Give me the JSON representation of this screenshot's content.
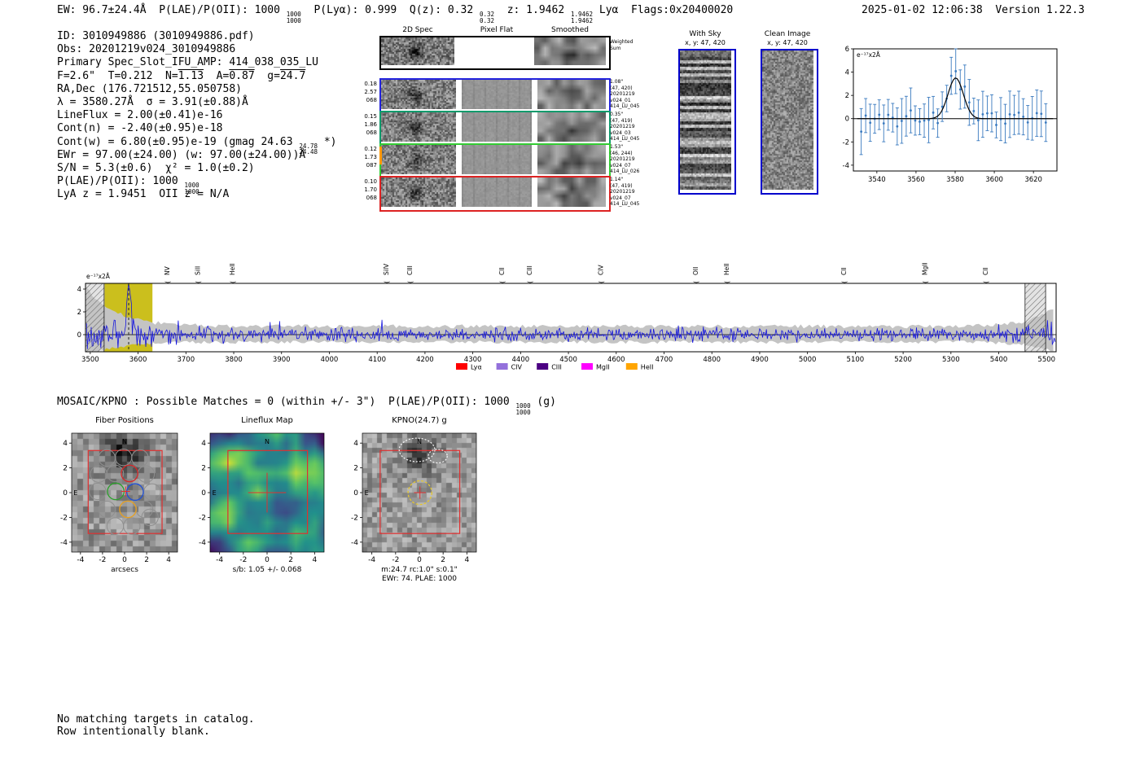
{
  "header": {
    "left": [
      {
        "t": "EW: 96.7±24.4Å  P(LAE)/P(OII): 1000 "
      },
      {
        "num": "1000",
        "den": "1000"
      },
      {
        "t": "  P(Lyα): 0.999  Q(z): 0.32 "
      },
      {
        "num": "0.32",
        "den": "0.32"
      },
      {
        "t": "  z: 1.9462 "
      },
      {
        "num": "1.9462",
        "den": "1.9462"
      },
      {
        "t": " Lyα  Flags:0x20400020"
      }
    ],
    "right": "2025-01-02 12:06:38  Version 1.22.3"
  },
  "info_lines": [
    [
      {
        "t": "ID: 3010949886 (3010949886.pdf)"
      }
    ],
    [
      {
        "t": "Obs: 20201219v024_3010949886"
      }
    ],
    [
      {
        "t": "Primary Spec_Slot_IFU_AMP: 414_038_035_LU"
      }
    ],
    [
      {
        "t": "F=2.6\"  T=0.212  N="
      },
      {
        "t": "1.13",
        "ov": true
      },
      {
        "t": "  A="
      },
      {
        "t": "0.87",
        "ov": true
      },
      {
        "t": "  g="
      },
      {
        "t": "24.7",
        "ov": true
      }
    ],
    [
      {
        "t": "RA,Dec (176.721512,55.050758)"
      }
    ],
    [
      {
        "t": "λ = 3580.27Å  σ = 3.91(±0.88)Å"
      }
    ],
    [
      {
        "t": "LineFlux = 2.00(±0.41)e-16"
      }
    ],
    [
      {
        "t": "Cont(n) = -2.40(±0.95)e-18"
      }
    ],
    [
      {
        "t": "Cont(w) = 6.80(±0.95)e-19 (gmag 24.63 "
      },
      {
        "num": "24.78",
        "den": "24.48"
      },
      {
        "t": " *)"
      }
    ],
    [
      {
        "t": "EWr = 97.00(±24.00) (w: 97.00(±24.00))Å"
      }
    ],
    [
      {
        "t": "S/N = 5.3(±0.6)  χ² = 1.0(±0.2)"
      }
    ],
    [
      {
        "t": "P(LAE)/P(OII): 1000 "
      },
      {
        "num": "1000",
        "den": "1000"
      }
    ],
    [
      {
        "t": "LyA z = 1.9451  OII z = N/A"
      }
    ]
  ],
  "spec2d": {
    "col_headers": [
      "2D Spec",
      "Pixel Flat",
      "Smoothed"
    ],
    "weighted_sum_label": "Weighted\nSum",
    "rows": [
      {
        "left": "0.18\n2.57\n068",
        "right": "1.08\"\n(47, 420)\n20201219\nv024_01\n414_LU_045",
        "border": "#2222dd"
      },
      {
        "left": "0.15\n1.86\n068",
        "right": "0.35\"\n(47, 419)\n20201219\nv024_03\n414_LU_045",
        "border": "#0f9b6c"
      },
      {
        "left": "0.12\n1.73\n087",
        "right": "1.53\"\n(46, 244)\n20201219\nv024_07\n414_LU_026",
        "border": "#33cc33",
        "accent": "#ff9900"
      },
      {
        "left": "0.10\n1.70\n068",
        "right": "1.14\"\n(47, 419)\n20201219\nv024_07\n414_LU_045",
        "border": "#dd2222"
      }
    ]
  },
  "with_sky": {
    "title": "With Sky",
    "coords": "x, y: 47, 420"
  },
  "clean_image": {
    "title": "Clean Image",
    "coords": "x, y: 47, 420"
  },
  "mosaic_line": [
    {
      "t": "MOSAIC/KPNO : Possible Matches = 0 (within +/- 3\")  P(LAE)/P(OII): 1000 "
    },
    {
      "num": "1000",
      "den": "1000"
    },
    {
      "t": " (g)"
    }
  ],
  "footer_lines": [
    "No matching targets in catalog.",
    "Row intentionally blank."
  ],
  "chart_data": [
    {
      "id": "zoom_spectrum",
      "type": "line",
      "ylabel_annotation": "e⁻¹⁷x2Å",
      "xlim": [
        3528,
        3632
      ],
      "ylim": [
        -4.5,
        6
      ],
      "xticks": [
        3540,
        3560,
        3580,
        3600,
        3620
      ],
      "yticks": [
        6,
        4,
        2,
        0,
        -2,
        -4
      ],
      "gauss_fit": {
        "center": 3580.27,
        "sigma": 3.91,
        "amplitude": 3.5
      },
      "noise_sigma": 1.2,
      "point_color": "#3a7abf",
      "fit_color": "#000000"
    },
    {
      "id": "full_spectrum",
      "type": "line",
      "ylabel_annotation": "e⁻¹⁷x2Å",
      "xlim": [
        3490,
        5520
      ],
      "ylim": [
        -1.5,
        4.5
      ],
      "xticks": [
        3500,
        3600,
        3700,
        3800,
        3900,
        4000,
        4100,
        4200,
        4300,
        4400,
        4500,
        4600,
        4700,
        4800,
        4900,
        5000,
        5100,
        5200,
        5300,
        5400,
        5500
      ],
      "yticks": [
        4,
        2,
        0
      ],
      "peak": {
        "wavelength": 3580.27,
        "height": 4.3
      },
      "continuum_level": 0.0,
      "noise_sigma": 0.7,
      "highlight_band": {
        "x0": 3530,
        "x1": 3630,
        "color": "#cbbf1d"
      },
      "edge_masks": [
        [
          3490,
          3529
        ],
        [
          5455,
          5498
        ]
      ],
      "marked_wavelength": 3580.27,
      "line_color": "#1515dd",
      "noise_band_color": "#c4c4c4",
      "line_markers": [
        {
          "label": "NV",
          "wavelength": 3661,
          "color": "#c03070"
        },
        {
          "label": "SiII",
          "wavelength": 3725,
          "color": "#b22222"
        },
        {
          "label": "HeII",
          "wavelength": 3797,
          "color": "#9370db"
        },
        {
          "label": "SiIV",
          "wavelength": 4119,
          "color": "#9370db"
        },
        {
          "label": "CIII",
          "wavelength": 4169,
          "color": "#ffa500"
        },
        {
          "label": "CII",
          "wavelength": 4361,
          "color": "#9370db"
        },
        {
          "label": "CIII",
          "wavelength": 4419,
          "color": "#9370db"
        },
        {
          "label": "CIV",
          "wavelength": 4568,
          "color": "#e01010"
        },
        {
          "label": "OII",
          "wavelength": 4766,
          "color": "#ff00ff"
        },
        {
          "label": "HeII",
          "wavelength": 4831,
          "color": "#e01010"
        },
        {
          "label": "CII",
          "wavelength": 5076,
          "color": "#ffa500"
        },
        {
          "label": "MgII",
          "wavelength": 5246,
          "color": "#9370db"
        },
        {
          "label": "CII",
          "wavelength": 5373,
          "color": "#9370db"
        }
      ],
      "legend": [
        {
          "label": "Lyα",
          "color": "#ff0000"
        },
        {
          "label": "CIV",
          "color": "#9370db"
        },
        {
          "label": "CIII",
          "color": "#4b0082"
        },
        {
          "label": "MgII",
          "color": "#ff00ff"
        },
        {
          "label": "HeII",
          "color": "#ffa500"
        }
      ]
    },
    {
      "id": "fiber_positions",
      "type": "heatmap",
      "title": "Fiber Positions",
      "xlabel": "arcsecs",
      "xticks": [
        -4,
        -2,
        0,
        2,
        4
      ],
      "yticks": [
        -4,
        -2,
        0,
        2,
        4
      ],
      "box": [
        -3.3,
        3.4
      ],
      "fiber_radius": 0.75,
      "fibers_gray": [
        [
          -1.6,
          2.8
        ],
        [
          -0.1,
          2.85
        ],
        [
          1.4,
          2.8
        ],
        [
          -2.35,
          1.5
        ],
        [
          -0.85,
          1.55
        ],
        [
          1.95,
          1.5
        ],
        [
          -2.45,
          0.1
        ],
        [
          2.5,
          0.05
        ],
        [
          -1.6,
          -1.35
        ],
        [
          1.8,
          -1.35
        ],
        [
          -0.85,
          -2.7
        ],
        [
          0.65,
          -2.7
        ],
        [
          2.3,
          -2.0
        ]
      ],
      "fibers_colored": [
        {
          "x": 0.45,
          "y": 1.55,
          "color": "#d62728"
        },
        {
          "x": -0.8,
          "y": 0.1,
          "color": "#2ca02c"
        },
        {
          "x": 0.95,
          "y": 0.05,
          "color": "#1f4fd6"
        },
        {
          "x": 0.3,
          "y": -1.35,
          "color": "#e8a020"
        }
      ],
      "cross": {
        "x": 0.1,
        "y": 0.1,
        "color": "#e03030"
      },
      "compass": {
        "n": "N",
        "e": "E",
        "color": "#e03030"
      }
    },
    {
      "id": "lineflux_map",
      "type": "heatmap",
      "title": "Lineflux Map",
      "xlabel": "s/b: 1.05 +/- 0.068",
      "xticks": [
        -4,
        -2,
        0,
        2,
        4
      ],
      "yticks": [
        -4,
        -2,
        0,
        2,
        4
      ],
      "box": [
        -3.3,
        3.4
      ],
      "cross_len": 1.6,
      "compass": {
        "n": "N",
        "e": "E",
        "color": "#e03030"
      }
    },
    {
      "id": "kpno_cutout",
      "type": "heatmap",
      "title": "KPNO(24.7) g",
      "xlabel": "m:24.7 rc:1.0\"  s:0.1\"",
      "xlabel2": "EWr: 74. PLAE: 1000",
      "xticks": [
        -4,
        -2,
        0,
        2,
        4
      ],
      "yticks": [
        -4,
        -2,
        0,
        2,
        4
      ],
      "box": [
        -3.3,
        3.4
      ],
      "aperture": {
        "x": 0.05,
        "y": 0.0,
        "r": 1.0,
        "color": "#e3c530"
      },
      "neighbors": [
        {
          "x": -0.2,
          "y": 3.45,
          "rx": 1.5,
          "ry": 0.95
        },
        {
          "x": 1.55,
          "y": 2.95,
          "rx": 0.8,
          "ry": 0.55
        }
      ],
      "cross": {
        "x": 0.05,
        "y": 0.0,
        "color": "#e03030"
      },
      "compass": {
        "n": "N",
        "e": "E",
        "color": "#e03030"
      }
    }
  ]
}
